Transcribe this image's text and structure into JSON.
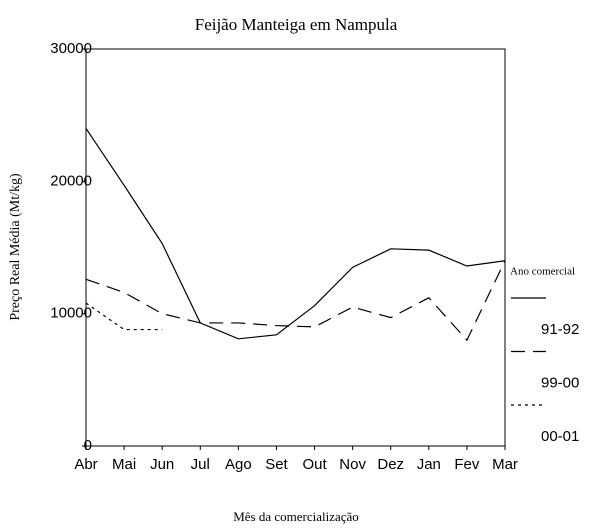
{
  "chart_data": {
    "type": "line",
    "title": "Feijão Manteiga em Nampula",
    "x_label": "Mês da comercialização",
    "y_label": "Preço Real Média (Mt/kg)",
    "legend_title": "Ano comercial",
    "categories": [
      "Abr",
      "Mai",
      "Jun",
      "Jul",
      "Ago",
      "Set",
      "Out",
      "Nov",
      "Dez",
      "Jan",
      "Fev",
      "Mar"
    ],
    "series": [
      {
        "name": "91-92",
        "color": "#000000",
        "dash": "",
        "values": [
          24000,
          19700,
          15300,
          9300,
          8100,
          8400,
          10600,
          13500,
          14900,
          14800,
          13600,
          14000
        ]
      },
      {
        "name": "99-00",
        "color": "#000000",
        "dash": "14 8",
        "values": [
          12600,
          11600,
          10000,
          9300,
          9300,
          9100,
          9000,
          10500,
          9700,
          11200,
          8000,
          14000
        ]
      },
      {
        "name": "00-01",
        "color": "#000000",
        "dash": "3 4",
        "values": [
          10800,
          8800,
          8800,
          null,
          null,
          null,
          null,
          null,
          null,
          null,
          null,
          null
        ]
      }
    ],
    "ylim": [
      0,
      30000
    ],
    "yticks": [
      0,
      10000,
      20000,
      30000
    ],
    "legend": "right"
  }
}
